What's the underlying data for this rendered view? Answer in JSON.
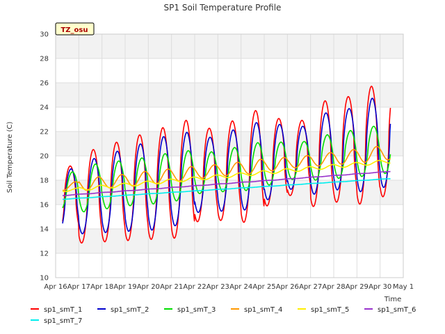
{
  "chart_data": {
    "type": "line",
    "title": "SP1 Soil Temperature Profile",
    "xlabel": "Time",
    "ylabel": "Soil Temperature (C)",
    "ylim": [
      10,
      30
    ],
    "yticks": [
      10,
      12,
      14,
      16,
      18,
      20,
      22,
      24,
      26,
      28,
      30
    ],
    "xlim": [
      0,
      15
    ],
    "xticks": [
      "Apr 16",
      "Apr 17",
      "Apr 18",
      "Apr 19",
      "Apr 20",
      "Apr 21",
      "Apr 22",
      "Apr 23",
      "Apr 24",
      "Apr 25",
      "Apr 26",
      "Apr 27",
      "Apr 28",
      "Apr 29",
      "Apr 30",
      "May 1"
    ],
    "tag_label": "TZ_osu",
    "legend": "bottom",
    "series": [
      {
        "name": "sp1_smT_1",
        "color": "#ff0000",
        "x_start": 0.3,
        "x_end": 14.45,
        "mean": 16.2,
        "trend": 0.35,
        "amp": [
          5.5,
          7.5,
          8,
          8.5,
          9,
          9.5,
          7.5,
          8,
          9,
          7,
          6,
          8.5,
          8.5,
          9.5,
          9
        ],
        "phase": 0.625,
        "sharp": 2.5
      },
      {
        "name": "sp1_smT_2",
        "color": "#0000cc",
        "x_start": 0.3,
        "x_end": 14.45,
        "mean": 16.2,
        "trend": 0.35,
        "amp": [
          5,
          6,
          6.5,
          7,
          7.5,
          7.5,
          6,
          6.5,
          7,
          6,
          5,
          6.5,
          6.5,
          7.5,
          7.5
        ],
        "phase": 0.66,
        "sharp": 2.0
      },
      {
        "name": "sp1_smT_3",
        "color": "#00dd00",
        "x_start": 0.3,
        "x_end": 14.45,
        "mean": 17.0,
        "trend": 0.25,
        "amp": [
          3,
          3.8,
          3.8,
          3.8,
          4,
          4,
          3.3,
          3.5,
          3.8,
          3.4,
          3,
          3.6,
          3.8,
          4,
          4
        ],
        "phase": 0.72,
        "sharp": 1.3
      },
      {
        "name": "sp1_smT_4",
        "color": "#ff9900",
        "x_start": 0.3,
        "x_end": 14.45,
        "mean": 17.4,
        "trend": 0.2,
        "amp": [
          0.6,
          1.0,
          1.0,
          1.1,
          1.1,
          1.1,
          1.0,
          1.0,
          1.1,
          1.0,
          0.9,
          1.0,
          1.1,
          1.2,
          1.2
        ],
        "phase": 0.85,
        "sharp": 0
      },
      {
        "name": "sp1_smT_5",
        "color": "#ffee00",
        "x_start": 0.3,
        "x_end": 14.45,
        "mean": 17.1,
        "trend": 0.17,
        "amp": [
          0.2,
          0.3,
          0.3,
          0.3,
          0.3,
          0.3,
          0.3,
          0.3,
          0.3,
          0.3,
          0.3,
          0.3,
          0.3,
          0.3,
          0.3
        ],
        "phase": 0.95,
        "sharp": 0
      },
      {
        "name": "sp1_smT_6",
        "color": "#9933cc",
        "x_start": 0.3,
        "x_end": 14.45,
        "mean": 16.7,
        "trend": 0.14,
        "amp": [
          0.03,
          0.03,
          0.03,
          0.03,
          0.03,
          0.03,
          0.03,
          0.03,
          0.03,
          0.03,
          0.03,
          0.03,
          0.03,
          0.03,
          0.03
        ],
        "phase": 0.0,
        "sharp": 0
      },
      {
        "name": "sp1_smT_7",
        "color": "#00eeee",
        "x_start": 0.3,
        "x_end": 14.45,
        "mean": 16.4,
        "trend": 0.12,
        "amp": [
          0.02,
          0.02,
          0.02,
          0.02,
          0.02,
          0.02,
          0.02,
          0.02,
          0.02,
          0.02,
          0.02,
          0.02,
          0.02,
          0.02,
          0.02
        ],
        "phase": 0.0,
        "sharp": 0
      }
    ]
  }
}
